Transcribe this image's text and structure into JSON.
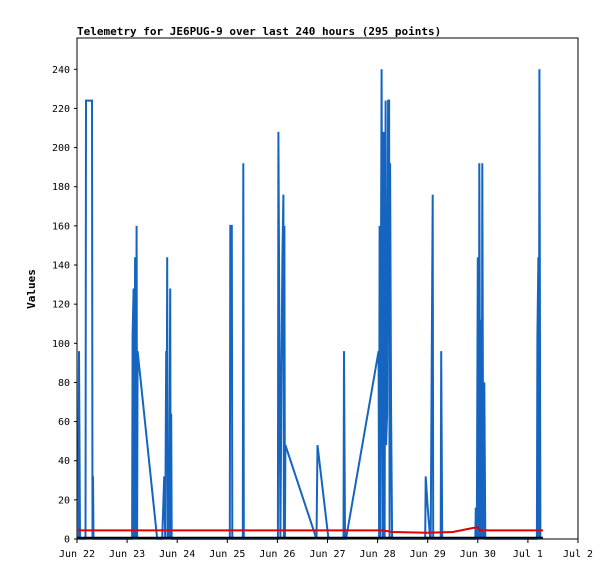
{
  "chart_data": {
    "type": "line",
    "title": "Telemetry for JE6PUG-9 over last 240 hours (295 points)",
    "xlabel": "",
    "ylabel": "Values",
    "xlim": [
      0,
      10
    ],
    "ylim": [
      0,
      256
    ],
    "grid": false,
    "legend": "none",
    "x_ticks": [
      "Jun 22",
      "Jun 23",
      "Jun 24",
      "Jun 25",
      "Jun 26",
      "Jun 27",
      "Jun 28",
      "Jun 29",
      "Jun 30",
      "Jul 1",
      "Jul 2"
    ],
    "y_ticks": [
      0,
      20,
      40,
      60,
      80,
      100,
      120,
      140,
      160,
      180,
      200,
      220,
      240
    ],
    "colors": {
      "blue": "#1565c0",
      "red": "#e00000",
      "black": "#000000"
    },
    "series": [
      {
        "color": "#1565c0",
        "points": [
          [
            0.02,
            0
          ],
          [
            0.04,
            96
          ],
          [
            0.06,
            0
          ],
          [
            0.17,
            0
          ],
          [
            0.18,
            224
          ],
          [
            0.3,
            224
          ],
          [
            0.31,
            0
          ],
          [
            0.32,
            32
          ],
          [
            0.33,
            0
          ],
          [
            1.1,
            0
          ],
          [
            1.11,
            104
          ],
          [
            1.13,
            128
          ],
          [
            1.14,
            0
          ],
          [
            1.16,
            144
          ],
          [
            1.17,
            0
          ],
          [
            1.18,
            72
          ],
          [
            1.19,
            160
          ],
          [
            1.2,
            0
          ],
          [
            1.21,
            96
          ],
          [
            1.6,
            0
          ],
          [
            1.7,
            0
          ],
          [
            1.74,
            32
          ],
          [
            1.76,
            0
          ],
          [
            1.78,
            96
          ],
          [
            1.79,
            48
          ],
          [
            1.8,
            144
          ],
          [
            1.81,
            0
          ],
          [
            1.83,
            40
          ],
          [
            1.84,
            0
          ],
          [
            1.86,
            128
          ],
          [
            1.87,
            0
          ],
          [
            1.88,
            64
          ],
          [
            1.89,
            0
          ],
          [
            3.05,
            0
          ],
          [
            3.06,
            160
          ],
          [
            3.09,
            160
          ],
          [
            3.1,
            0
          ],
          [
            3.31,
            0
          ],
          [
            3.32,
            192
          ],
          [
            3.33,
            0
          ],
          [
            4.01,
            0
          ],
          [
            4.02,
            208
          ],
          [
            4.04,
            104
          ],
          [
            4.06,
            0
          ],
          [
            4.08,
            80
          ],
          [
            4.1,
            144
          ],
          [
            4.12,
            176
          ],
          [
            4.13,
            0
          ],
          [
            4.14,
            160
          ],
          [
            4.15,
            0
          ],
          [
            4.16,
            48
          ],
          [
            4.78,
            0
          ],
          [
            4.8,
            48
          ],
          [
            5.02,
            0
          ],
          [
            5.32,
            0
          ],
          [
            5.33,
            96
          ],
          [
            5.35,
            0
          ],
          [
            5.37,
            0
          ],
          [
            6.02,
            96
          ],
          [
            6.03,
            0
          ],
          [
            6.04,
            160
          ],
          [
            6.05,
            0
          ],
          [
            6.08,
            240
          ],
          [
            6.1,
            0
          ],
          [
            6.11,
            80
          ],
          [
            6.12,
            208
          ],
          [
            6.14,
            0
          ],
          [
            6.16,
            224
          ],
          [
            6.17,
            48
          ],
          [
            6.19,
            64
          ],
          [
            6.21,
            224
          ],
          [
            6.23,
            224
          ],
          [
            6.24,
            0
          ],
          [
            6.25,
            192
          ],
          [
            6.27,
            64
          ],
          [
            6.29,
            0
          ],
          [
            6.95,
            0
          ],
          [
            6.96,
            32
          ],
          [
            7.0,
            16
          ],
          [
            7.05,
            0
          ],
          [
            7.06,
            0
          ],
          [
            7.1,
            176
          ],
          [
            7.11,
            0
          ],
          [
            7.26,
            0
          ],
          [
            7.27,
            96
          ],
          [
            7.29,
            0
          ],
          [
            7.95,
            0
          ],
          [
            7.96,
            16
          ],
          [
            7.98,
            0
          ],
          [
            8.0,
            144
          ],
          [
            8.02,
            0
          ],
          [
            8.03,
            192
          ],
          [
            8.05,
            0
          ],
          [
            8.06,
            112
          ],
          [
            8.08,
            0
          ],
          [
            8.09,
            192
          ],
          [
            8.11,
            0
          ],
          [
            8.13,
            80
          ],
          [
            8.15,
            0
          ],
          [
            9.18,
            0
          ],
          [
            9.19,
            104
          ],
          [
            9.21,
            144
          ],
          [
            9.22,
            0
          ],
          [
            9.23,
            240
          ],
          [
            9.25,
            0
          ]
        ]
      },
      {
        "color": "#e00000",
        "points": [
          [
            0.0,
            4.4
          ],
          [
            5.7,
            4.4
          ],
          [
            6.1,
            4.4
          ],
          [
            6.3,
            3.6
          ],
          [
            7.0,
            3.2
          ],
          [
            7.5,
            3.6
          ],
          [
            7.9,
            5.6
          ],
          [
            8.0,
            6.0
          ],
          [
            8.05,
            4.4
          ],
          [
            9.3,
            4.4
          ]
        ]
      },
      {
        "color": "#000000",
        "points": [
          [
            0.0,
            0.6
          ],
          [
            9.3,
            0.6
          ]
        ]
      }
    ]
  }
}
